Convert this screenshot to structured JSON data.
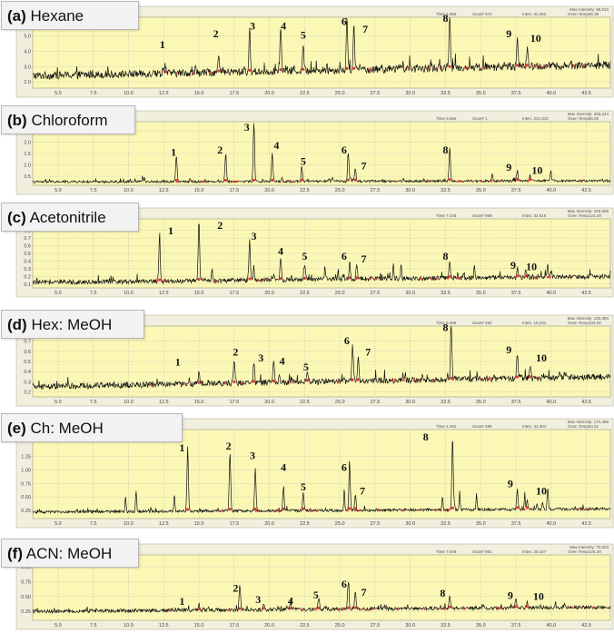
{
  "colors": {
    "plot_bg": "#fbf8b6",
    "frame_bg": "#f1efde",
    "trace": "#111111",
    "marker": "#e03c3c",
    "grid": "#b9b9b9"
  },
  "x_ticks": [
    "5.0",
    "7.5",
    "10.0",
    "12.5",
    "15.0",
    "17.5",
    "20.0",
    "22.5",
    "25.0",
    "27.5",
    "30.0",
    "32.5",
    "35.0",
    "37.5",
    "40.0",
    "42.5"
  ],
  "chart_data": [
    {
      "type": "line",
      "panel_label": "(a) Hexane",
      "label_prefix": "(a)",
      "label_text": "Hexane",
      "header": {
        "max_intensity": "Max Intensity: 59,010",
        "time": "Time 4.556",
        "scan": "Scan# 373",
        "inten": "Inten. 42,562",
        "oven": "Oven Temp56.38"
      },
      "y_ticks": [
        "2.0",
        "3.0",
        "4.0",
        "5.0"
      ],
      "xlim": [
        3.2,
        44.2
      ],
      "ylim": [
        1.6,
        6.2
      ],
      "baseline": {
        "start": 2.4,
        "end": 3.1,
        "noise": 0.25
      },
      "peaks": [
        {
          "label": "1",
          "x": 12.6,
          "h": 3.0,
          "lx": 12.4,
          "ly": 4.2
        },
        {
          "label": "2",
          "x": 16.4,
          "h": 3.4,
          "lx": 16.2,
          "ly": 4.9
        },
        {
          "label": "3",
          "x": 18.6,
          "h": 5.0,
          "lx": 18.8,
          "ly": 5.4
        },
        {
          "label": "4",
          "x": 20.8,
          "h": 5.2,
          "lx": 21.0,
          "ly": 5.4
        },
        {
          "label": "5",
          "x": 22.4,
          "h": 4.0,
          "lx": 22.4,
          "ly": 4.8
        },
        {
          "label": "6",
          "x": 25.5,
          "h": 5.8,
          "lx": 25.3,
          "ly": 5.7
        },
        {
          "label": "7",
          "x": 26.0,
          "h": 5.4,
          "lx": 26.8,
          "ly": 5.2
        },
        {
          "label": "8",
          "x": 32.8,
          "h": 6.1,
          "lx": 32.5,
          "ly": 5.9
        },
        {
          "label": "9",
          "x": 37.6,
          "h": 4.4,
          "lx": 37.0,
          "ly": 4.9
        },
        {
          "label": "10",
          "x": 38.3,
          "h": 3.6,
          "lx": 38.9,
          "ly": 4.6
        }
      ]
    },
    {
      "type": "line",
      "panel_label": "(b) Chloroform",
      "label_prefix": "(b)",
      "label_text": "Chloroform",
      "header": {
        "max_intensity": "Max Intensity: 283,444",
        "time": "Time 3.565",
        "scan": "Scan# 1",
        "inten": "Inten. 221,812",
        "oven": "Oven Temp55.00"
      },
      "y_ticks": [
        "0.5",
        "1.0",
        "1.5",
        "2.0",
        "2.5"
      ],
      "xlim": [
        3.2,
        44.2
      ],
      "ylim": [
        0.1,
        2.9
      ],
      "baseline": {
        "start": 0.25,
        "end": 0.3,
        "noise": 0.05
      },
      "peaks": [
        {
          "label": "1",
          "x": 13.4,
          "h": 1.4,
          "lx": 13.2,
          "ly": 1.4
        },
        {
          "label": "2",
          "x": 16.9,
          "h": 1.5,
          "lx": 16.5,
          "ly": 1.5
        },
        {
          "label": "3",
          "x": 18.9,
          "h": 2.8,
          "lx": 18.4,
          "ly": 2.5
        },
        {
          "label": "4",
          "x": 20.2,
          "h": 1.5,
          "lx": 20.5,
          "ly": 1.7
        },
        {
          "label": "5",
          "x": 22.3,
          "h": 0.9,
          "lx": 22.4,
          "ly": 1.0
        },
        {
          "label": "6",
          "x": 25.6,
          "h": 1.5,
          "lx": 25.3,
          "ly": 1.5
        },
        {
          "label": "7",
          "x": 26.1,
          "h": 0.8,
          "lx": 26.7,
          "ly": 0.8
        },
        {
          "label": "8",
          "x": 32.8,
          "h": 1.7,
          "lx": 32.5,
          "ly": 1.5
        },
        {
          "label": "9",
          "x": 37.6,
          "h": 0.7,
          "lx": 37.0,
          "ly": 0.75
        },
        {
          "label": "10",
          "x": 38.5,
          "h": 0.5,
          "lx": 39.0,
          "ly": 0.6
        }
      ]
    },
    {
      "type": "line",
      "panel_label": "(c) Acetonitrile",
      "label_prefix": "(c)",
      "label_text": "Acetonitrile",
      "header": {
        "max_intensity": "Max Intensity: 100,609",
        "time": "Time 7.445",
        "scan": "Scan# 999",
        "inten": "Inten. 32,616",
        "oven": "Oven Temp124.49"
      },
      "y_ticks": [
        "0.1",
        "0.2",
        "0.3",
        "0.4",
        "0.5",
        "0.6",
        "0.7",
        "0.8"
      ],
      "xlim": [
        3.2,
        44.2
      ],
      "ylim": [
        0.05,
        0.95
      ],
      "baseline": {
        "start": 0.12,
        "end": 0.2,
        "noise": 0.03
      },
      "peaks": [
        {
          "label": "1",
          "x": 12.2,
          "h": 0.7,
          "lx": 13.0,
          "ly": 0.75
        },
        {
          "label": "2",
          "x": 15.0,
          "h": 0.92,
          "lx": 16.5,
          "ly": 0.82
        },
        {
          "label": "3",
          "x": 18.6,
          "h": 0.55,
          "lx": 18.9,
          "ly": 0.68
        },
        {
          "label": "4",
          "x": 20.8,
          "h": 0.4,
          "lx": 20.8,
          "ly": 0.48
        },
        {
          "label": "5",
          "x": 22.5,
          "h": 0.33,
          "lx": 22.5,
          "ly": 0.42
        },
        {
          "label": "6",
          "x": 25.7,
          "h": 0.35,
          "lx": 25.3,
          "ly": 0.42
        },
        {
          "label": "7",
          "x": 26.2,
          "h": 0.3,
          "lx": 26.7,
          "ly": 0.38
        },
        {
          "label": "8",
          "x": 32.8,
          "h": 0.35,
          "lx": 32.5,
          "ly": 0.42
        },
        {
          "label": "9",
          "x": 37.6,
          "h": 0.25,
          "lx": 37.3,
          "ly": 0.3
        },
        {
          "label": "10",
          "x": 38.2,
          "h": 0.22,
          "lx": 38.6,
          "ly": 0.28
        }
      ]
    },
    {
      "type": "line",
      "panel_label": "(d) Hex: MeOH",
      "label_prefix": "(d)",
      "label_text": "Hex: MeOH",
      "header": {
        "max_intensity": "Max Intensity: 102,394",
        "time": "Time 5.406",
        "scan": "Scan# 492",
        "inten": "Inten. 19,231",
        "oven": "Oven Temp104.06"
      },
      "y_ticks": [
        "0.2",
        "0.3",
        "0.4",
        "0.5",
        "0.6",
        "0.7"
      ],
      "xlim": [
        3.2,
        44.2
      ],
      "ylim": [
        0.15,
        0.85
      ],
      "baseline": {
        "start": 0.25,
        "end": 0.35,
        "noise": 0.03
      },
      "peaks": [
        {
          "label": "1",
          "x": 15.0,
          "h": 0.35,
          "lx": 13.5,
          "ly": 0.46
        },
        {
          "label": "2",
          "x": 17.5,
          "h": 0.48,
          "lx": 17.6,
          "ly": 0.56
        },
        {
          "label": "3",
          "x": 18.9,
          "h": 0.46,
          "lx": 19.4,
          "ly": 0.5
        },
        {
          "label": "4",
          "x": 20.3,
          "h": 0.44,
          "lx": 20.9,
          "ly": 0.47
        },
        {
          "label": "5",
          "x": 22.7,
          "h": 0.36,
          "lx": 22.6,
          "ly": 0.41
        },
        {
          "label": "6",
          "x": 25.9,
          "h": 0.62,
          "lx": 25.5,
          "ly": 0.67
        },
        {
          "label": "7",
          "x": 26.3,
          "h": 0.5,
          "lx": 27.0,
          "ly": 0.56
        },
        {
          "label": "8",
          "x": 32.9,
          "h": 0.82,
          "lx": 32.5,
          "ly": 0.8
        },
        {
          "label": "9",
          "x": 37.6,
          "h": 0.5,
          "lx": 37.0,
          "ly": 0.58
        },
        {
          "label": "10",
          "x": 38.5,
          "h": 0.38,
          "lx": 39.3,
          "ly": 0.5
        }
      ]
    },
    {
      "type": "line",
      "panel_label": "(e) Ch: MeOH",
      "label_prefix": "(e)",
      "label_text": "Ch: MeOH",
      "header": {
        "max_intensity": "Max Intensity: 174,466",
        "time": "Time 4.491",
        "scan": "Scan# 298",
        "inten": "Inten. 44,304",
        "oven": "Oven Temp54.51"
      },
      "y_ticks": [
        "0.25",
        "0.50",
        "0.75",
        "1.00",
        "1.25"
      ],
      "xlim": [
        3.2,
        44.2
      ],
      "ylim": [
        0.1,
        1.75
      ],
      "baseline": {
        "start": 0.22,
        "end": 0.28,
        "noise": 0.025
      },
      "peaks": [
        {
          "label": "1",
          "x": 14.2,
          "h": 1.4,
          "lx": 13.8,
          "ly": 1.35
        },
        {
          "label": "2",
          "x": 17.2,
          "h": 1.3,
          "lx": 17.1,
          "ly": 1.38
        },
        {
          "label": "3",
          "x": 19.0,
          "h": 1.0,
          "lx": 18.8,
          "ly": 1.2
        },
        {
          "label": "4",
          "x": 21.0,
          "h": 0.65,
          "lx": 21.0,
          "ly": 0.98
        },
        {
          "label": "5",
          "x": 22.4,
          "h": 0.55,
          "lx": 22.4,
          "ly": 0.62
        },
        {
          "label": "6",
          "x": 25.7,
          "h": 0.85,
          "lx": 25.3,
          "ly": 0.98
        },
        {
          "label": "7",
          "x": 26.1,
          "h": 0.5,
          "lx": 26.6,
          "ly": 0.55
        },
        {
          "label": "8",
          "x": 33.0,
          "h": 1.58,
          "lx": 31.1,
          "ly": 1.55
        },
        {
          "label": "9",
          "x": 37.6,
          "h": 0.6,
          "lx": 37.1,
          "ly": 0.68
        },
        {
          "label": "10",
          "x": 38.3,
          "h": 0.4,
          "lx": 39.3,
          "ly": 0.55
        }
      ]
    },
    {
      "type": "line",
      "panel_label": "(f) ACN: MeOH",
      "label_prefix": "(f)",
      "label_text": "ACN: MeOH",
      "header": {
        "max_intensity": "Max Intensity: 70,503",
        "time": "Time 7.949",
        "scan": "Scan# 991",
        "inten": "Inten. 26,427",
        "oven": "Oven Temp125.49"
      },
      "y_ticks": [
        "0.25",
        "0.50",
        "0.75",
        "1.00"
      ],
      "xlim": [
        3.2,
        44.2
      ],
      "ylim": [
        0.1,
        1.2
      ],
      "baseline": {
        "start": 0.25,
        "end": 0.32,
        "noise": 0.03
      },
      "peaks": [
        {
          "label": "1",
          "x": 15.0,
          "h": 0.35,
          "lx": 13.8,
          "ly": 0.36
        },
        {
          "label": "2",
          "x": 17.9,
          "h": 0.65,
          "lx": 17.6,
          "ly": 0.58
        },
        {
          "label": "3",
          "x": 19.6,
          "h": 0.33,
          "lx": 19.2,
          "ly": 0.39
        },
        {
          "label": "4",
          "x": 21.5,
          "h": 0.4,
          "lx": 21.5,
          "ly": 0.37
        },
        {
          "label": "5",
          "x": 23.5,
          "h": 0.45,
          "lx": 23.3,
          "ly": 0.47
        },
        {
          "label": "6",
          "x": 25.6,
          "h": 0.68,
          "lx": 25.3,
          "ly": 0.65
        },
        {
          "label": "7",
          "x": 26.1,
          "h": 0.52,
          "lx": 26.7,
          "ly": 0.51
        },
        {
          "label": "8",
          "x": 32.8,
          "h": 0.45,
          "lx": 32.3,
          "ly": 0.5
        },
        {
          "label": "9",
          "x": 37.5,
          "h": 0.42,
          "lx": 37.1,
          "ly": 0.46
        },
        {
          "label": "10",
          "x": 38.3,
          "h": 0.35,
          "lx": 39.1,
          "ly": 0.44
        }
      ]
    }
  ]
}
